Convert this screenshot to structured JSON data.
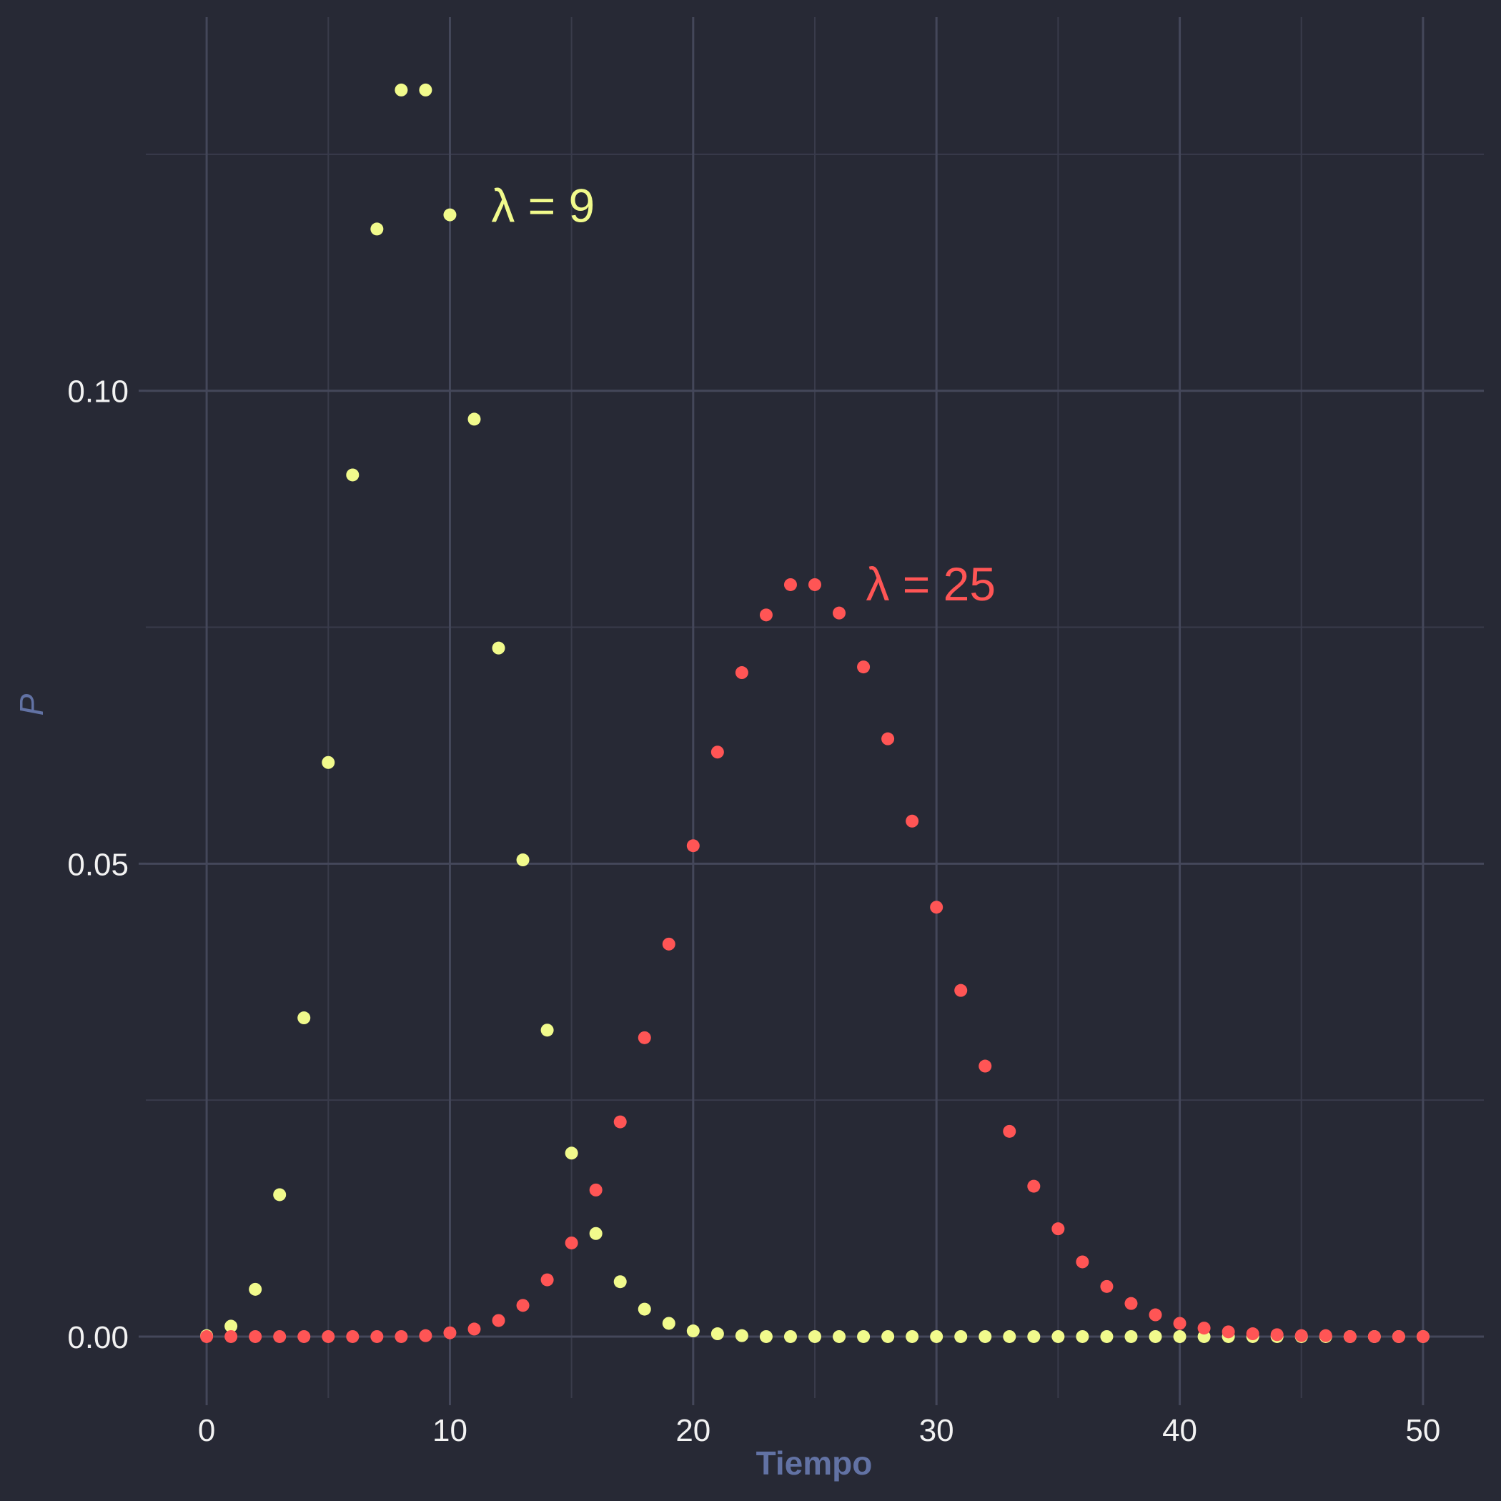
{
  "colors": {
    "background": "#272935",
    "grid_major": "#44475a",
    "grid_minor": "#393b4b",
    "text": "#f2f2f2",
    "axis_title": "#6272a4",
    "series_9": "#f1fa8c",
    "series_25": "#ff5555"
  },
  "chart_data": {
    "type": "scatter",
    "title": "",
    "xlabel": "Tiempo",
    "ylabel": "P",
    "xlim": [
      -2.5,
      52.5
    ],
    "ylim": [
      -0.0065,
      0.1395
    ],
    "x_ticks": [
      0,
      10,
      20,
      30,
      40,
      50
    ],
    "x_tick_labels": [
      "0",
      "10",
      "20",
      "30",
      "40",
      "50"
    ],
    "x_minor_ticks": [
      5,
      15,
      25,
      35,
      45
    ],
    "y_ticks": [
      0.0,
      0.05,
      0.1
    ],
    "y_tick_labels": [
      "0.00",
      "0.05",
      "0.10"
    ],
    "y_minor_ticks": [
      0.025,
      0.075,
      0.125
    ],
    "grid": true,
    "legend": "none",
    "x": [
      0,
      1,
      2,
      3,
      4,
      5,
      6,
      7,
      8,
      9,
      10,
      11,
      12,
      13,
      14,
      15,
      16,
      17,
      18,
      19,
      20,
      21,
      22,
      23,
      24,
      25,
      26,
      27,
      28,
      29,
      30,
      31,
      32,
      33,
      34,
      35,
      36,
      37,
      38,
      39,
      40,
      41,
      42,
      43,
      44,
      45,
      46,
      47,
      48,
      49,
      50
    ],
    "series": [
      {
        "color": "#f1fa8c",
        "values": [
          0.0001,
          0.0011,
          0.005,
          0.015,
          0.0337,
          0.0607,
          0.0911,
          0.1171,
          0.1318,
          0.1318,
          0.1186,
          0.097,
          0.0728,
          0.0504,
          0.0324,
          0.0194,
          0.0109,
          0.0058,
          0.0029,
          0.0014,
          0.0006,
          0.0003,
          0.0001,
          0.0,
          0.0,
          0.0,
          0.0,
          0.0,
          0.0,
          0.0,
          0.0,
          0.0,
          0.0,
          0.0,
          0.0,
          0.0,
          0.0,
          0.0,
          0.0,
          0.0,
          0.0,
          0.0,
          0.0,
          0.0,
          0.0,
          0.0,
          0.0,
          0.0,
          0.0,
          0.0,
          0.0
        ]
      },
      {
        "color": "#ff5555",
        "values": [
          0.0,
          0.0,
          0.0,
          0.0,
          0.0,
          0.0,
          0.0,
          0.0,
          0.0,
          0.0001,
          0.0004,
          0.0008,
          0.0017,
          0.0033,
          0.006,
          0.0099,
          0.0155,
          0.0227,
          0.0316,
          0.0415,
          0.0519,
          0.0618,
          0.0702,
          0.0763,
          0.0795,
          0.0795,
          0.0765,
          0.0708,
          0.0632,
          0.0545,
          0.0454,
          0.0366,
          0.0286,
          0.0217,
          0.0159,
          0.0114,
          0.0079,
          0.0053,
          0.0035,
          0.0023,
          0.0014,
          0.0009,
          0.0005,
          0.0003,
          0.0002,
          0.0001,
          0.0001,
          0.0,
          0.0,
          0.0,
          0.0
        ]
      }
    ],
    "annotations": [
      {
        "text": "λ = 9",
        "x": 11.7,
        "y": 0.1195,
        "color": "#f1fa8c"
      },
      {
        "text": "λ = 25",
        "x": 27.1,
        "y": 0.0795,
        "color": "#ff5555"
      }
    ]
  }
}
